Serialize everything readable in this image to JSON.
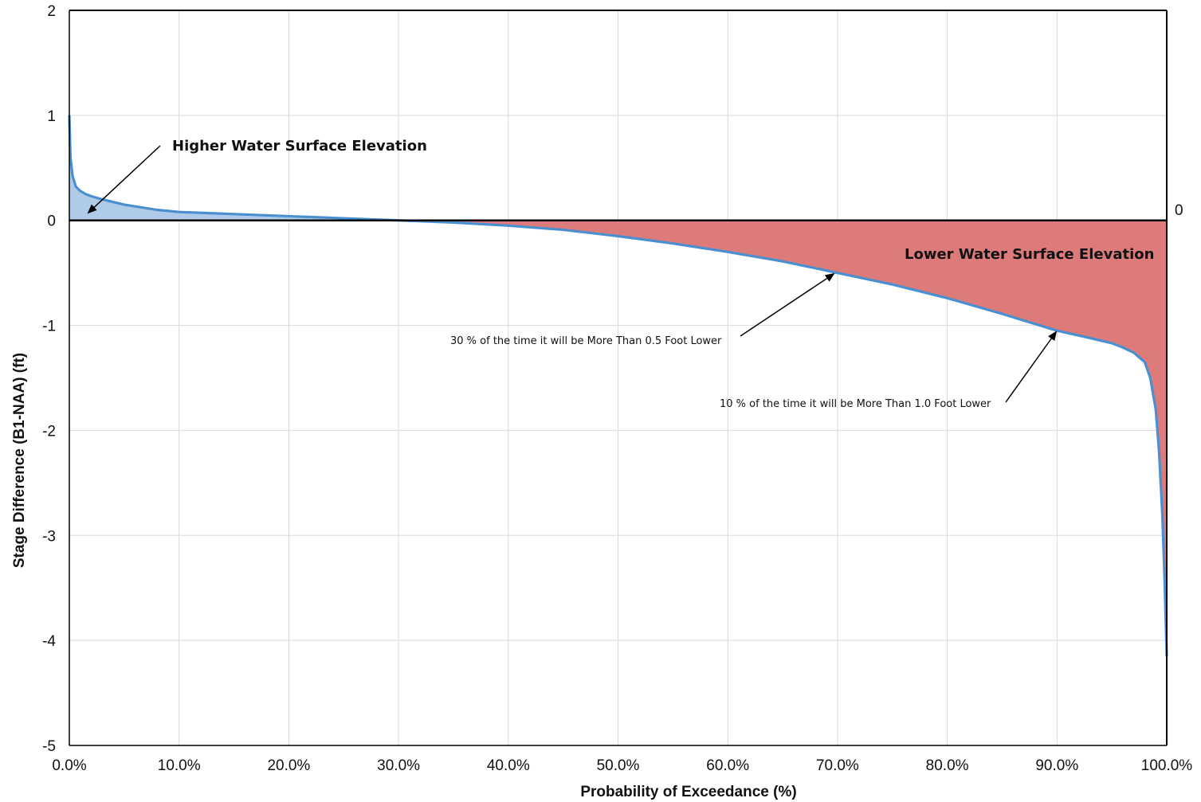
{
  "chart_data": {
    "type": "area",
    "xlabel": "Probability of Exceedance (%)",
    "ylabel": "Stage Difference (B1-NAA) (ft)",
    "xlim": [
      0,
      100
    ],
    "ylim": [
      -5,
      2
    ],
    "grid": true,
    "x_ticks": [
      "0.0%",
      "10.0%",
      "20.0%",
      "30.0%",
      "40.0%",
      "50.0%",
      "60.0%",
      "70.0%",
      "80.0%",
      "90.0%",
      "100.0%"
    ],
    "x_tick_values": [
      0,
      10,
      20,
      30,
      40,
      50,
      60,
      70,
      80,
      90,
      100
    ],
    "y_ticks": [
      "2",
      "1",
      "0",
      "-1",
      "-2",
      "-3",
      "-4",
      "-5"
    ],
    "y_tick_values": [
      2,
      1,
      0,
      -1,
      -2,
      -3,
      -4,
      -5
    ],
    "reference_line": {
      "y": 0,
      "label": "0"
    },
    "series": [
      {
        "x": [
          0,
          0.1,
          0.3,
          0.6,
          1,
          1.5,
          2,
          3,
          5,
          8,
          10,
          15,
          20,
          25,
          30,
          35,
          40,
          45,
          50,
          55,
          60,
          65,
          70,
          75,
          80,
          85,
          90,
          93,
          95,
          96,
          97,
          98,
          98.5,
          99,
          99.3,
          99.6,
          99.8,
          100
        ],
        "y": [
          1.0,
          0.6,
          0.42,
          0.32,
          0.28,
          0.25,
          0.23,
          0.2,
          0.15,
          0.1,
          0.08,
          0.06,
          0.04,
          0.02,
          0.0,
          -0.02,
          -0.05,
          -0.09,
          -0.15,
          -0.22,
          -0.3,
          -0.39,
          -0.5,
          -0.61,
          -0.74,
          -0.89,
          -1.05,
          -1.12,
          -1.17,
          -1.21,
          -1.26,
          -1.35,
          -1.5,
          -1.8,
          -2.2,
          -2.8,
          -3.4,
          -4.15
        ],
        "color": "#4a8fd0",
        "fill_positive": "#b0cbe8",
        "fill_negative": "#dd7b7b"
      }
    ],
    "annotations": [
      {
        "text": "Higher Water Surface Elevation",
        "style": "bold"
      },
      {
        "text": "Lower Water Surface Elevation",
        "style": "bold"
      },
      {
        "text": "30 % of the time it will be More Than 0.5 Foot Lower",
        "style": "normal"
      },
      {
        "text": "10 % of the time it will be More Than 1.0 Foot Lower",
        "style": "normal"
      }
    ]
  }
}
